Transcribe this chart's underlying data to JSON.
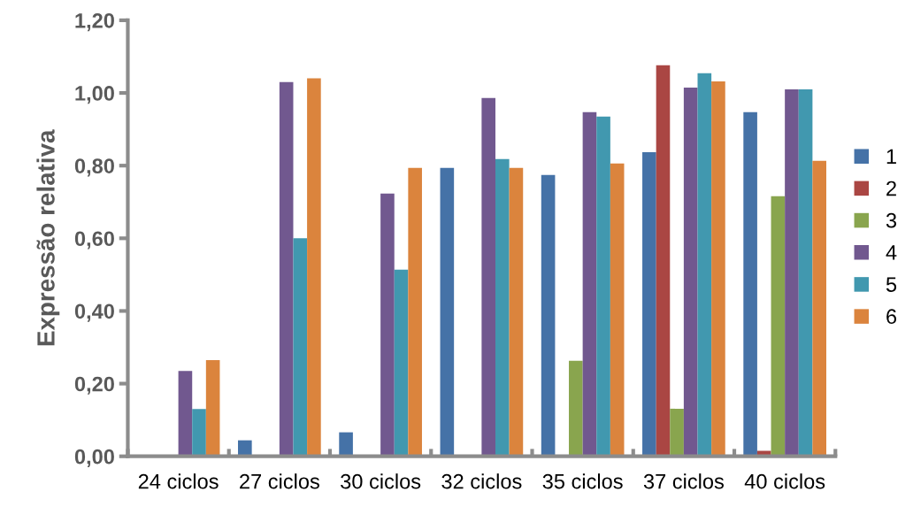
{
  "chart_data": {
    "type": "bar",
    "ylabel": "Expressão relativa",
    "categories": [
      "24 ciclos",
      "27 ciclos",
      "30 ciclos",
      "32 ciclos",
      "35 ciclos",
      "37 ciclos",
      "40 ciclos"
    ],
    "series": [
      {
        "name": "1",
        "color": "#4572a7",
        "values": [
          null,
          0.044,
          0.066,
          0.794,
          0.774,
          0.837,
          0.947
        ]
      },
      {
        "name": "2",
        "color": "#aa4643",
        "values": [
          null,
          null,
          null,
          null,
          null,
          1.076,
          0.015
        ]
      },
      {
        "name": "3",
        "color": "#89a54e",
        "values": [
          null,
          null,
          null,
          null,
          0.263,
          0.131,
          0.716
        ]
      },
      {
        "name": "4",
        "color": "#71588f",
        "values": [
          0.235,
          1.03,
          0.723,
          0.986,
          0.947,
          1.015,
          1.01
        ]
      },
      {
        "name": "5",
        "color": "#4198af",
        "values": [
          0.13,
          0.6,
          0.514,
          0.818,
          0.935,
          1.054,
          1.01
        ]
      },
      {
        "name": "6",
        "color": "#db843d",
        "values": [
          0.265,
          1.04,
          0.794,
          0.794,
          0.806,
          1.032,
          0.813
        ]
      }
    ],
    "ylim": [
      0,
      1.2
    ],
    "yticks": [
      {
        "value": 0,
        "label": "0,00"
      },
      {
        "value": 0.2,
        "label": "0,20"
      },
      {
        "value": 0.4,
        "label": "0,40"
      },
      {
        "value": 0.6,
        "label": "0,60"
      },
      {
        "value": 0.8,
        "label": "0,80"
      },
      {
        "value": 1.0,
        "label": "1,00"
      },
      {
        "value": 1.2,
        "label": "1,20"
      }
    ],
    "grid": false,
    "legend": "right"
  }
}
